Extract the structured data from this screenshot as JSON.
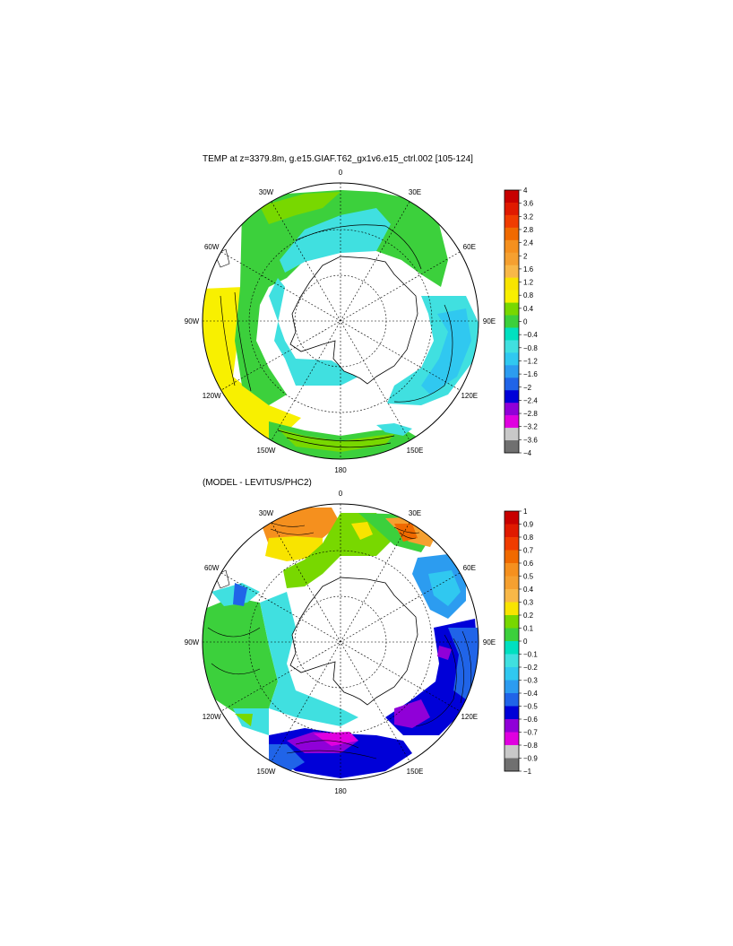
{
  "panels": [
    {
      "title": "TEMP at z=3379.8m, g.e15.GIAF.T62_gx1v6.e15_ctrl.002 [105-124]",
      "longitude_labels": [
        "0",
        "30E",
        "60E",
        "90E",
        "120E",
        "150E",
        "180",
        "150W",
        "120W",
        "90W",
        "60W",
        "30W"
      ],
      "colorbar": {
        "labels": [
          "4",
          "3.6",
          "3.2",
          "2.8",
          "2.4",
          "2",
          "1.6",
          "1.2",
          "0.8",
          "0.4",
          "0",
          "−0.4",
          "−0.8",
          "−1.2",
          "−1.6",
          "−2",
          "−2.4",
          "−2.8",
          "−3.2",
          "−3.6",
          "−4"
        ],
        "colors": [
          "#c80000",
          "#e01a00",
          "#f03c00",
          "#f06a00",
          "#f5901e",
          "#f5a030",
          "#f8b848",
          "#f8e400",
          "#f8f000",
          "#78d800",
          "#3cd03c",
          "#00e0c0",
          "#40e0e0",
          "#30c8f0",
          "#2c9cf0",
          "#2064e8",
          "#0000d8",
          "#9000d8",
          "#e000e0",
          "#c8c8c8",
          "#707070"
        ]
      }
    },
    {
      "title": "(MODEL - LEVITUS/PHC2)",
      "longitude_labels": [
        "0",
        "30E",
        "60E",
        "90E",
        "120E",
        "150E",
        "180",
        "150W",
        "120W",
        "90W",
        "60W",
        "30W"
      ],
      "colorbar": {
        "labels": [
          "1",
          "0.9",
          "0.8",
          "0.7",
          "0.6",
          "0.5",
          "0.4",
          "0.3",
          "0.2",
          "0.1",
          "0",
          "−0.1",
          "−0.2",
          "−0.3",
          "−0.4",
          "−0.5",
          "−0.6",
          "−0.7",
          "−0.8",
          "−0.9",
          "−1"
        ],
        "colors": [
          "#c80000",
          "#e01a00",
          "#f03c00",
          "#f06a00",
          "#f5901e",
          "#f5a030",
          "#f8b848",
          "#f8e400",
          "#78d800",
          "#3cd03c",
          "#00e0c0",
          "#40e0e0",
          "#30c8f0",
          "#2c9cf0",
          "#2064e8",
          "#0000d8",
          "#9000d8",
          "#e000e0",
          "#c8c8c8",
          "#707070"
        ]
      }
    }
  ]
}
